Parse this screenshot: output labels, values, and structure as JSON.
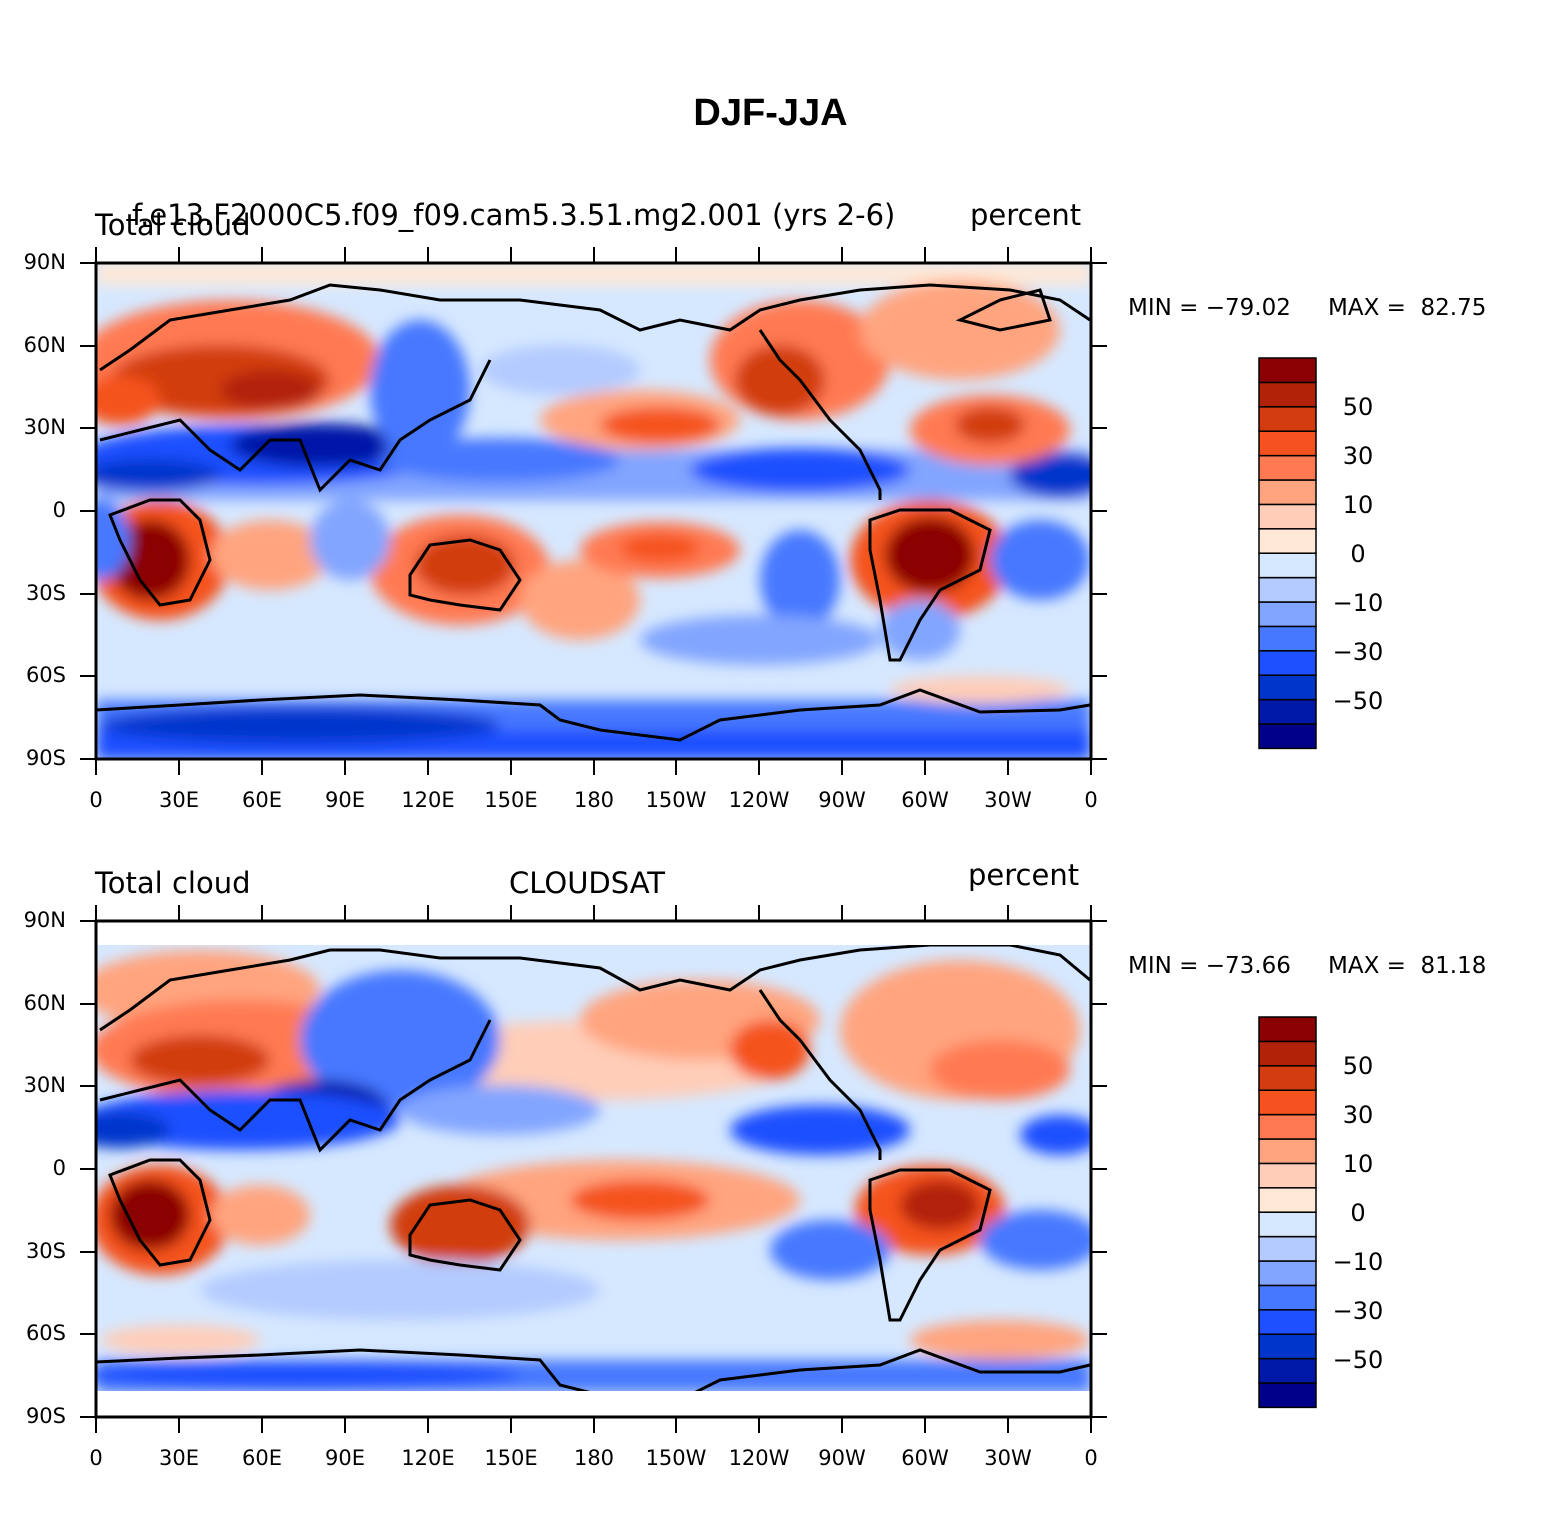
{
  "title": "DJF-JJA",
  "colorbar_colors": [
    "#00008b",
    "#0018a8",
    "#0035cc",
    "#1e50ff",
    "#4678ff",
    "#82a5ff",
    "#b3cbff",
    "#d6e8ff",
    "#ffe8d6",
    "#ffcdb8",
    "#ffa47f",
    "#ff7a52",
    "#f5521f",
    "#d23c0e",
    "#b22208",
    "#8b0000"
  ],
  "colorbar_labels": [
    "50",
    "30",
    "10",
    "0",
    "−10",
    "−30",
    "−50"
  ],
  "lat_labels": [
    "90N",
    "60N",
    "30N",
    "0",
    "30S",
    "60S",
    "90S"
  ],
  "lon_labels": [
    "0",
    "30E",
    "60E",
    "90E",
    "120E",
    "150E",
    "180",
    "150W",
    "120W",
    "90W",
    "60W",
    "30W",
    "0"
  ],
  "panels": [
    {
      "left_label": "Total cloud",
      "center_label": "f.e13.F2000C5.f09_f09.cam5.3.51.mg2.001 (yrs 2-6)",
      "right_label": "percent",
      "min_label": "MIN = −79.02",
      "max_label": "MAX =  82.75"
    },
    {
      "left_label": "Total cloud",
      "center_label": "CLOUDSAT",
      "right_label": "percent",
      "min_label": "MIN = −73.66",
      "max_label": "MAX =  81.18"
    }
  ]
}
